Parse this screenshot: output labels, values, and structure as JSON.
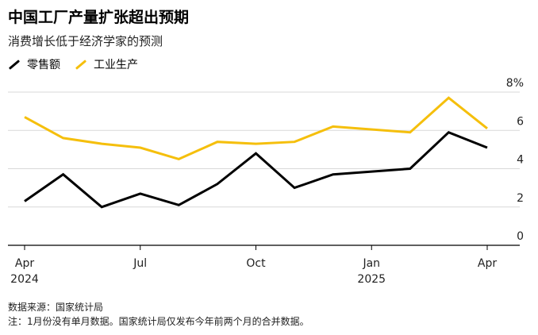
{
  "header": {
    "title": "中国工厂产量扩张超出预期",
    "subtitle": "消费增长低于经济学家的预测"
  },
  "legend": [
    {
      "label": "零售额",
      "color": "#000000"
    },
    {
      "label": "工业生产",
      "color": "#F5BF0C"
    }
  ],
  "footer": {
    "source": "数据来源：国家统计局",
    "note": "注：1月份没有单月数据。国家统计局仅发布今年前两个月的合并数据。"
  },
  "chart_data": {
    "type": "line",
    "title": "中国工厂产量扩张超出预期",
    "subtitle": "消费增长低于经济学家的预测",
    "x": [
      "2024-04",
      "2024-05",
      "2024-06",
      "2024-07",
      "2024-08",
      "2024-09",
      "2024-10",
      "2024-11",
      "2024-12",
      "2025-02",
      "2025-03",
      "2025-04"
    ],
    "series": [
      {
        "name": "零售额",
        "color": "#000000",
        "values": [
          2.3,
          3.7,
          2.0,
          2.7,
          2.1,
          3.2,
          4.8,
          3.0,
          3.7,
          4.0,
          5.9,
          5.1
        ]
      },
      {
        "name": "工业生产",
        "color": "#F5BF0C",
        "values": [
          6.7,
          5.6,
          5.3,
          5.1,
          4.5,
          5.4,
          5.3,
          5.4,
          6.2,
          5.9,
          7.7,
          6.1
        ]
      }
    ],
    "xticks": [
      {
        "x": "2024-04",
        "label": "Apr",
        "sublabel": "2024"
      },
      {
        "x": "2024-07",
        "label": "Jul",
        "sublabel": ""
      },
      {
        "x": "2024-10",
        "label": "Oct",
        "sublabel": ""
      },
      {
        "x": "2025-01",
        "label": "Jan",
        "sublabel": "2025"
      },
      {
        "x": "2025-04",
        "label": "Apr",
        "sublabel": ""
      }
    ],
    "yticks": [
      {
        "value": 0,
        "label": "0"
      },
      {
        "value": 2,
        "label": "2"
      },
      {
        "value": 4,
        "label": "4"
      },
      {
        "value": 6,
        "label": "6"
      },
      {
        "value": 8,
        "label": "8%"
      }
    ],
    "ylim": [
      0,
      8
    ],
    "xlim": [
      "2024-03",
      "2025-05"
    ],
    "y_axis_side": "right",
    "grid": true,
    "legend_position": "top-left"
  }
}
